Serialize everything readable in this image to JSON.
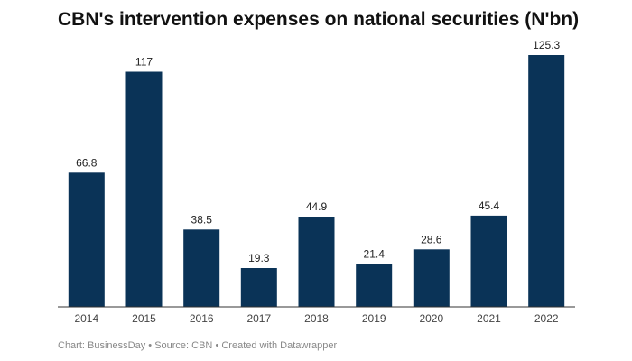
{
  "chart_data": {
    "type": "bar",
    "title": "CBN's intervention expenses on national securities (N'bn)",
    "categories": [
      "2014",
      "2015",
      "2016",
      "2017",
      "2018",
      "2019",
      "2020",
      "2021",
      "2022"
    ],
    "values": [
      66.8,
      117,
      38.5,
      19.3,
      44.9,
      21.4,
      28.6,
      45.4,
      125.3
    ],
    "value_labels": [
      "66.8",
      "117",
      "38.5",
      "19.3",
      "44.9",
      "21.4",
      "28.6",
      "45.4",
      "125.3"
    ],
    "xlabel": "",
    "ylabel": "",
    "ylim": [
      0,
      125.3
    ],
    "grid": false,
    "bar_color": "#0a3357"
  },
  "footer": {
    "credit": "Chart: BusinessDay",
    "sep1": " • ",
    "source": "Source: CBN",
    "sep2": " • ",
    "tool": "Created with Datawrapper"
  }
}
